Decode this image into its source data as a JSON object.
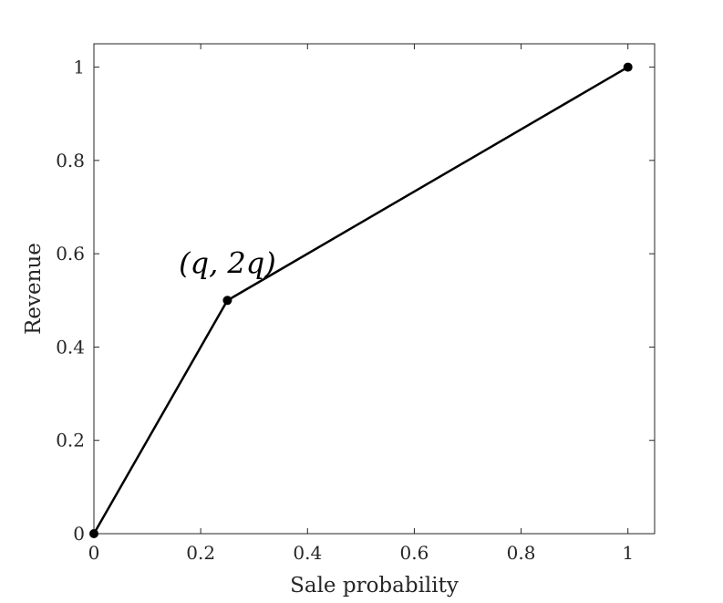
{
  "chart_data": {
    "type": "line",
    "xlabel": "Sale probability",
    "ylabel": "Revenue",
    "xlim": [
      0,
      1.05
    ],
    "ylim": [
      0,
      1.05
    ],
    "x_ticks": [
      0,
      0.2,
      0.4,
      0.6,
      0.8,
      1
    ],
    "x_tick_labels": [
      "0",
      "0.2",
      "0.4",
      "0.6",
      "0.8",
      "1"
    ],
    "y_ticks": [
      0,
      0.2,
      0.4,
      0.6,
      0.8,
      1
    ],
    "y_tick_labels": [
      "0",
      "0.2",
      "0.4",
      "0.6",
      "0.8",
      "1"
    ],
    "grid": false,
    "series": [
      {
        "x": [
          0,
          0.25,
          1
        ],
        "y": [
          0,
          0.5,
          1
        ],
        "color": "#000000",
        "markers": true
      }
    ],
    "annotations": [
      {
        "text": "(q, 2q)",
        "x": 0.25,
        "y": 0.5
      }
    ]
  }
}
